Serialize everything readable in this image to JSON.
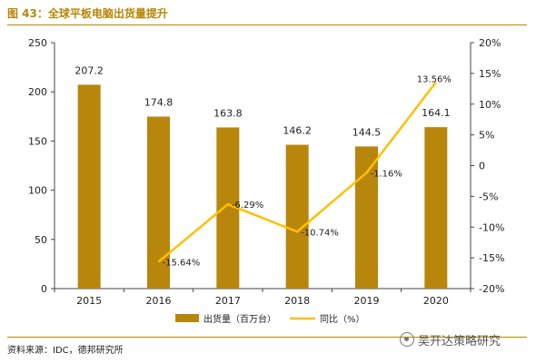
{
  "figure": {
    "title": "图 43：全球平板电脑出货量提升",
    "source": "资料来源：IDC，德邦研究所",
    "watermark": "吴开达策略研究"
  },
  "chart_data": {
    "type": "bar",
    "categories": [
      "2015",
      "2016",
      "2017",
      "2018",
      "2019",
      "2020"
    ],
    "series": [
      {
        "name": "出货量（百万台）",
        "type": "bar",
        "axis": "left",
        "values": [
          207.2,
          174.8,
          163.8,
          146.2,
          144.5,
          164.1
        ],
        "labels": [
          "207.2",
          "174.8",
          "163.8",
          "146.2",
          "144.5",
          "164.1"
        ],
        "color": "#b8860b"
      },
      {
        "name": "同比（%）",
        "type": "line",
        "axis": "right",
        "values": [
          null,
          -15.64,
          -6.29,
          -10.74,
          -1.16,
          13.56
        ],
        "labels": [
          "",
          "-15.64%",
          "-6.29%",
          "-10.74%",
          "-1.16%",
          "13.56%"
        ],
        "color": "#ffc000"
      }
    ],
    "y_left": {
      "min": 0,
      "max": 250,
      "ticks": [
        "0",
        "50",
        "100",
        "150",
        "200",
        "250"
      ]
    },
    "y_right": {
      "min": -20,
      "max": 20,
      "ticks": [
        "-20%",
        "-15%",
        "-10%",
        "-5%",
        "0",
        "5%",
        "10%",
        "15%",
        "20%"
      ]
    },
    "grid": false,
    "legend": "bottom"
  }
}
